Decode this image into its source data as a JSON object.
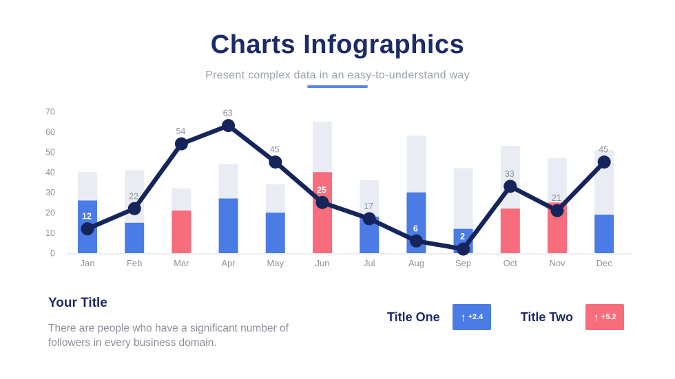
{
  "header": {
    "title": "Charts Infographics",
    "subtitle": "Present complex data in an easy-to-understand way"
  },
  "chart_data": {
    "type": "bar",
    "subtype": "combo bar + line",
    "categories": [
      "Jan",
      "Feb",
      "Mar",
      "Apr",
      "May",
      "Jun",
      "Jul",
      "Aug",
      "Sep",
      "Oct",
      "Nov",
      "Dec"
    ],
    "y_ticks": [
      0,
      10,
      20,
      30,
      40,
      50,
      60,
      70
    ],
    "ylim": [
      0,
      70
    ],
    "grid": "baseline-only",
    "legend_position": "none",
    "series": [
      {
        "name": "background-bars",
        "type": "bar",
        "color": "#e9edf3",
        "values": [
          40,
          41,
          32,
          44,
          34,
          65,
          36,
          58,
          42,
          53,
          47,
          51
        ]
      },
      {
        "name": "value-bars",
        "type": "bar",
        "palette": {
          "blue": "#4b7ce5",
          "red": "#f76d7b"
        },
        "bar_colors": [
          "blue",
          "blue",
          "red",
          "blue",
          "blue",
          "red",
          "blue",
          "blue",
          "blue",
          "red",
          "red",
          "blue"
        ],
        "values": [
          26,
          15,
          21,
          27,
          20,
          40,
          18,
          30,
          12,
          22,
          25,
          19
        ]
      },
      {
        "name": "trend-line",
        "type": "line",
        "color": "#15255c",
        "values": [
          12,
          22,
          54,
          63,
          45,
          25,
          17,
          6,
          2,
          33,
          21,
          45
        ],
        "point_label_white": [
          true,
          false,
          false,
          false,
          false,
          true,
          false,
          true,
          true,
          false,
          false,
          false
        ]
      }
    ],
    "colors": {
      "axis_text": "#8d939e",
      "point_label_gray": "#8d939e",
      "baseline": "#ebedf1"
    }
  },
  "footer": {
    "left": {
      "title": "Your Title",
      "body": "There are people who have a significant number of followers in every business domain."
    },
    "legend": [
      {
        "label": "Title One",
        "icon": "↑",
        "badge": "+2.4",
        "color": "#4b7ce5"
      },
      {
        "label": "Title Two",
        "icon": "↑",
        "badge": "+5.2",
        "color": "#f76d7b"
      }
    ]
  }
}
